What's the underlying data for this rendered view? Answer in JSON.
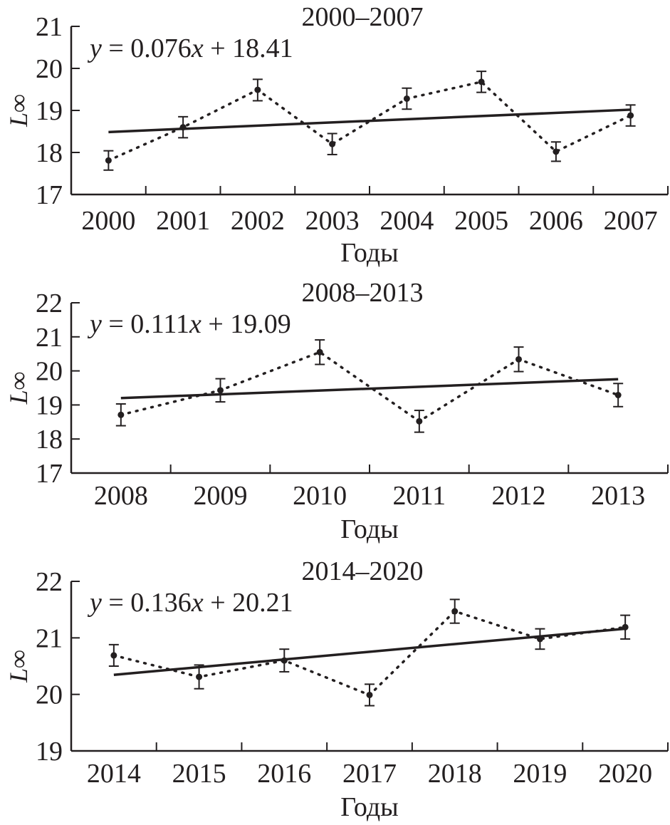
{
  "chart_data": [
    {
      "type": "line",
      "title": "2000–2007",
      "equation": {
        "y": "y",
        "eqx": " = 0.076",
        "x": "x",
        "rest": " + 18.41",
        "slope": 0.076,
        "intercept": 18.41
      },
      "xlabel": "Годы",
      "ylabel": "L∞",
      "categories": [
        "2000",
        "2001",
        "2002",
        "2003",
        "2004",
        "2005",
        "2006",
        "2007"
      ],
      "values": [
        17.81,
        18.6,
        19.49,
        18.2,
        19.28,
        19.68,
        18.02,
        18.88
      ],
      "err_low": [
        17.58,
        18.35,
        19.23,
        17.95,
        19.03,
        19.43,
        17.79,
        18.63
      ],
      "err_high": [
        18.04,
        18.85,
        19.74,
        18.45,
        19.53,
        19.93,
        18.25,
        19.13
      ],
      "ylim": [
        17,
        21
      ],
      "yticks": [
        "17",
        "18",
        "19",
        "20",
        "21"
      ]
    },
    {
      "type": "line",
      "title": "2008–2013",
      "equation": {
        "y": "y",
        "eqx": " = 0.111",
        "x": "x",
        "rest": " + 19.09",
        "slope": 0.111,
        "intercept": 19.09
      },
      "xlabel": "Годы",
      "ylabel": "L∞",
      "categories": [
        "2008",
        "2009",
        "2010",
        "2011",
        "2012",
        "2013"
      ],
      "values": [
        18.71,
        19.43,
        20.55,
        18.52,
        20.34,
        19.29
      ],
      "err_low": [
        18.39,
        19.09,
        20.19,
        18.2,
        19.98,
        18.95
      ],
      "err_high": [
        19.03,
        19.77,
        20.91,
        18.84,
        20.7,
        19.63
      ],
      "ylim": [
        17,
        22
      ],
      "yticks": [
        "17",
        "18",
        "19",
        "20",
        "21",
        "22"
      ]
    },
    {
      "type": "line",
      "title": "2014–2020",
      "equation": {
        "y": "y",
        "eqx": " = 0.136",
        "x": "x",
        "rest": " + 20.21",
        "slope": 0.136,
        "intercept": 20.21
      },
      "xlabel": "Годы",
      "ylabel": "L∞",
      "categories": [
        "2014",
        "2015",
        "2016",
        "2017",
        "2018",
        "2019",
        "2020"
      ],
      "values": [
        20.69,
        20.31,
        20.6,
        19.99,
        21.47,
        20.98,
        21.19
      ],
      "err_low": [
        20.5,
        20.1,
        20.4,
        19.8,
        21.26,
        20.8,
        20.98
      ],
      "err_high": [
        20.88,
        20.52,
        20.8,
        20.18,
        21.68,
        21.16,
        21.4
      ],
      "ylim": [
        19,
        22
      ],
      "yticks": [
        "19",
        "20",
        "21",
        "22"
      ]
    }
  ]
}
